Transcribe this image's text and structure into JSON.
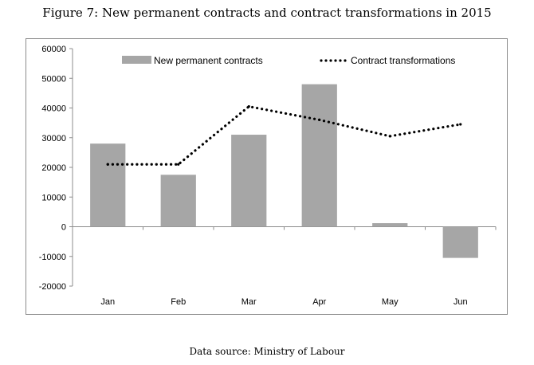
{
  "figure": {
    "title": "Figure 7: New permanent contracts and contract transformations in 2015",
    "source": "Data source: Ministry of Labour"
  },
  "chart_data": {
    "type": "bar",
    "categories": [
      "Jan",
      "Feb",
      "Mar",
      "Apr",
      "May",
      "Jun"
    ],
    "series": [
      {
        "name": "New permanent contracts",
        "type": "bar",
        "color": "#a6a6a6",
        "values": [
          28000,
          17500,
          31000,
          48000,
          1200,
          -10500
        ]
      },
      {
        "name": "Contract transformations",
        "type": "line",
        "style": "dotted",
        "color": "#000000",
        "values": [
          21000,
          21000,
          40500,
          36000,
          30500,
          34500
        ]
      }
    ],
    "ylim": [
      -20000,
      60000
    ],
    "yticks": [
      60000,
      50000,
      40000,
      30000,
      20000,
      10000,
      0,
      -10000,
      -20000
    ],
    "grid": false,
    "legend_position": "top"
  }
}
